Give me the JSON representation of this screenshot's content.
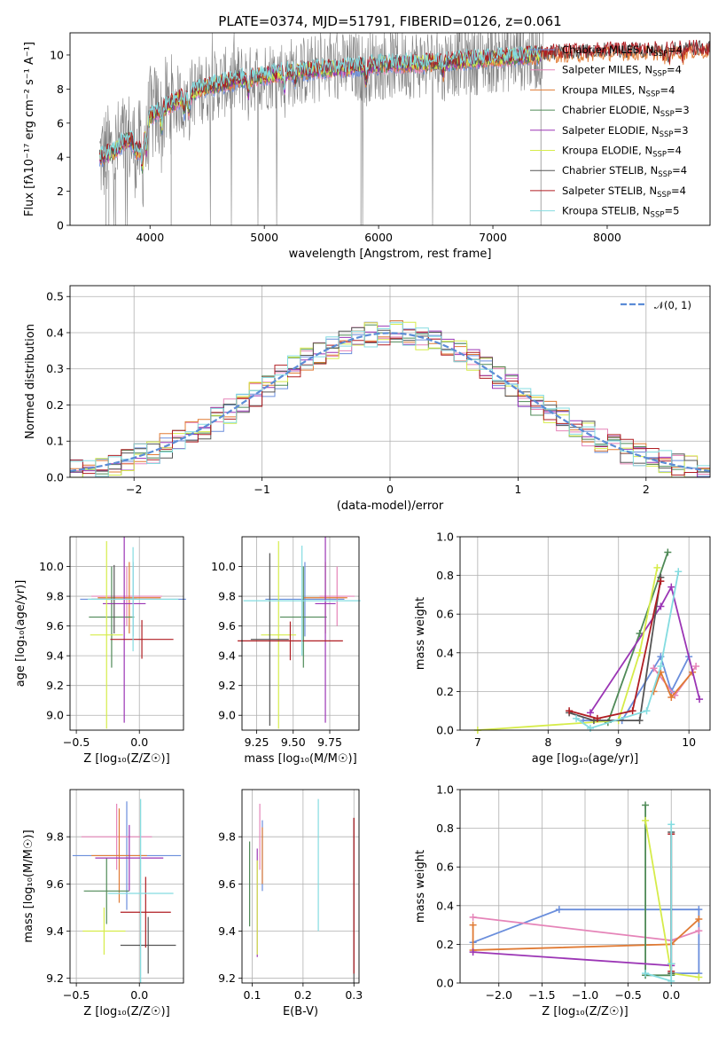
{
  "title": "PLATE=0374, MJD=51791, FIBERID=0126, z=0.061",
  "colors": {
    "Chabrier MILES": "#6a8edc",
    "Salpeter MILES": "#e584b8",
    "Kroupa MILES": "#e07b35",
    "Chabrier ELODIE": "#4f8a57",
    "Salpeter ELODIE": "#9b35b5",
    "Kroupa ELODIE": "#d6ec4a",
    "Chabrier STELIB": "#555555",
    "Salpeter STELIB": "#b01e23",
    "Kroupa STELIB": "#84dce0",
    "data": "#7f7f7f"
  },
  "chart_data": [
    {
      "id": "spectrum",
      "type": "line",
      "title": "PLATE=0374, MJD=51791, FIBERID=0126, z=0.061",
      "xlabel": "wavelength [Angstrom, rest frame]",
      "ylabel": "Flux [fλ10⁻¹⁷ erg cm⁻² s⁻¹ A⁻¹]",
      "xlim": [
        3300,
        8900
      ],
      "ylim": [
        0,
        11.3
      ],
      "xticks": [
        "4000",
        "5000",
        "6000",
        "7000",
        "8000"
      ],
      "yticks": [
        "0",
        "2",
        "4",
        "6",
        "8",
        "10"
      ],
      "legend_position": "right",
      "legend": [
        {
          "label": "Chabrier MILES, N",
          "sub": "SSP",
          "suffix": "=4",
          "color": "#6a8edc"
        },
        {
          "label": "Salpeter MILES, N",
          "sub": "SSP",
          "suffix": "=4",
          "color": "#e584b8"
        },
        {
          "label": "Kroupa MILES, N",
          "sub": "SSP",
          "suffix": "=4",
          "color": "#e07b35"
        },
        {
          "label": "Chabrier ELODIE, N",
          "sub": "SSP",
          "suffix": "=3",
          "color": "#4f8a57"
        },
        {
          "label": "Salpeter ELODIE, N",
          "sub": "SSP",
          "suffix": "=3",
          "color": "#9b35b5"
        },
        {
          "label": "Kroupa ELODIE, N",
          "sub": "SSP",
          "suffix": "=4",
          "color": "#d6ec4a"
        },
        {
          "label": "Chabrier STELIB, N",
          "sub": "SSP",
          "suffix": "=4",
          "color": "#555555"
        },
        {
          "label": "Salpeter STELIB, N",
          "sub": "SSP",
          "suffix": "=4",
          "color": "#b01e23"
        },
        {
          "label": "Kroupa STELIB, N",
          "sub": "SSP",
          "suffix": "=5",
          "color": "#84dce0"
        }
      ],
      "model_trend": {
        "x": [
          3560,
          3700,
          3850,
          4000,
          4200,
          4400,
          4600,
          4800,
          5000,
          5200,
          5400,
          5600,
          5800,
          6000,
          6200,
          6400,
          6600,
          6800,
          7000,
          7200,
          7400,
          7600,
          7800,
          8000,
          8200,
          8400,
          8600,
          8800
        ],
        "y": [
          4.0,
          4.4,
          5.5,
          6.4,
          7.2,
          7.9,
          8.3,
          8.6,
          8.8,
          9.0,
          9.1,
          9.2,
          9.3,
          9.4,
          9.5,
          9.5,
          9.6,
          9.7,
          9.8,
          9.9,
          10.0,
          10.1,
          10.1,
          10.2,
          10.2,
          10.2,
          10.3,
          10.3
        ]
      }
    },
    {
      "id": "residuals",
      "type": "step",
      "xlabel": "(data-model)/error",
      "ylabel": "Normed distribution",
      "xlim": [
        -2.5,
        2.5
      ],
      "ylim": [
        0,
        0.53
      ],
      "xticks": [
        "−2",
        "−1",
        "0",
        "1",
        "2"
      ],
      "yticks": [
        "0.0",
        "0.1",
        "0.2",
        "0.3",
        "0.4",
        "0.5"
      ],
      "gaussian_label": "𝒩(0, 1)",
      "gaussian_color": "#5b8cd6",
      "bin_width": 0.1
    },
    {
      "id": "age-vs-Z",
      "type": "errorbar",
      "xlabel": "Z [log₁₀(Z/Z☉)]",
      "ylabel": "age  [log₁₀(age/yr)]",
      "xlim": [
        -0.55,
        0.35
      ],
      "ylim": [
        8.9,
        10.2
      ],
      "xticks": [
        "−0.5",
        "0.0"
      ],
      "yticks": [
        "9.0",
        "9.2",
        "9.4",
        "9.6",
        "9.8",
        "10.0"
      ],
      "points": [
        {
          "model": "Chabrier MILES",
          "x": -0.05,
          "xerr": 0.42,
          "y": 9.78,
          "yerr": 0.25
        },
        {
          "model": "Salpeter MILES",
          "x": -0.1,
          "xerr": 0.28,
          "y": 9.8,
          "yerr": 0.2
        },
        {
          "model": "Kroupa MILES",
          "x": -0.08,
          "xerr": 0.25,
          "y": 9.79,
          "yerr": 0.24
        },
        {
          "model": "Chabrier ELODIE",
          "x": -0.22,
          "xerr": 0.18,
          "y": 9.66,
          "yerr": 0.34
        },
        {
          "model": "Salpeter ELODIE",
          "x": -0.12,
          "xerr": 0.17,
          "y": 9.75,
          "yerr": 0.8
        },
        {
          "model": "Kroupa ELODIE",
          "x": -0.26,
          "xerr": 0.13,
          "y": 9.54,
          "yerr": 0.63
        },
        {
          "model": "Chabrier STELIB",
          "x": -0.2,
          "xerr": 0.18,
          "y": 9.78,
          "yerr": 0.23
        },
        {
          "model": "Salpeter STELIB",
          "x": 0.02,
          "xerr": 0.25,
          "y": 9.51,
          "yerr": 0.13
        },
        {
          "model": "Kroupa STELIB",
          "x": -0.05,
          "xerr": 0.36,
          "y": 9.78,
          "yerr": 0.35
        }
      ]
    },
    {
      "id": "age-vs-mass",
      "type": "errorbar",
      "xlabel": "mass [log₁₀(M/M☉)]",
      "ylabel": "",
      "xlim": [
        9.15,
        9.95
      ],
      "ylim": [
        8.9,
        10.2
      ],
      "xticks": [
        "9.25",
        "9.50",
        "9.75"
      ],
      "yticks": [
        "9.0",
        "9.2",
        "9.4",
        "9.6",
        "9.8",
        "10.0"
      ],
      "points": [
        {
          "model": "Chabrier MILES",
          "x": 9.58,
          "xerr": 0.27,
          "y": 9.78,
          "yerr": 0.25
        },
        {
          "model": "Salpeter MILES",
          "x": 9.8,
          "xerr": 0.12,
          "y": 9.8,
          "yerr": 0.2
        },
        {
          "model": "Kroupa MILES",
          "x": 9.72,
          "xerr": 0.15,
          "y": 9.79,
          "yerr": 0.24
        },
        {
          "model": "Chabrier ELODIE",
          "x": 9.57,
          "xerr": 0.16,
          "y": 9.66,
          "yerr": 0.34
        },
        {
          "model": "Salpeter ELODIE",
          "x": 9.72,
          "xerr": 0.07,
          "y": 9.75,
          "yerr": 0.8
        },
        {
          "model": "Kroupa ELODIE",
          "x": 9.4,
          "xerr": 0.12,
          "y": 9.54,
          "yerr": 0.63
        },
        {
          "model": "Chabrier STELIB",
          "x": 9.34,
          "xerr": 0.13,
          "y": 9.51,
          "yerr": 0.58
        },
        {
          "model": "Salpeter STELIB",
          "x": 9.48,
          "xerr": 0.36,
          "y": 9.5,
          "yerr": 0.13
        },
        {
          "model": "Kroupa STELIB",
          "x": 9.56,
          "xerr": 0.4,
          "y": 9.77,
          "yerr": 0.37
        }
      ]
    },
    {
      "id": "weight-vs-age",
      "type": "line",
      "xlabel": "age  [log₁₀(age/yr)]",
      "ylabel": "mass weight",
      "xlim": [
        6.75,
        10.3
      ],
      "ylim": [
        0,
        1.0
      ],
      "xticks": [
        "7",
        "8",
        "9",
        "10"
      ],
      "yticks": [
        "0.0",
        "0.2",
        "0.4",
        "0.6",
        "0.8",
        "1.0"
      ],
      "series": [
        {
          "model": "Chabrier MILES",
          "x": [
            8.5,
            9.05,
            9.6,
            9.75,
            10.0
          ],
          "y": [
            0.05,
            0.05,
            0.38,
            0.2,
            0.38
          ]
        },
        {
          "model": "Salpeter MILES",
          "x": [
            9.5,
            9.8,
            10.1
          ],
          "y": [
            0.32,
            0.18,
            0.33
          ]
        },
        {
          "model": "Kroupa MILES",
          "x": [
            9.5,
            9.6,
            9.75,
            10.05
          ],
          "y": [
            0.2,
            0.3,
            0.17,
            0.3
          ]
        },
        {
          "model": "Chabrier ELODIE",
          "x": [
            8.85,
            9.3,
            9.7
          ],
          "y": [
            0.04,
            0.5,
            0.92
          ]
        },
        {
          "model": "Salpeter ELODIE",
          "x": [
            8.6,
            9.6,
            9.75,
            10.15
          ],
          "y": [
            0.09,
            0.64,
            0.74,
            0.16
          ]
        },
        {
          "model": "Kroupa ELODIE",
          "x": [
            7.0,
            9.0,
            9.3,
            9.55
          ],
          "y": [
            0.0,
            0.05,
            0.4,
            0.84
          ]
        },
        {
          "model": "Chabrier STELIB",
          "x": [
            8.3,
            8.65,
            9.3,
            9.6
          ],
          "y": [
            0.09,
            0.05,
            0.05,
            0.79
          ]
        },
        {
          "model": "Salpeter STELIB",
          "x": [
            8.3,
            8.7,
            9.2,
            9.6
          ],
          "y": [
            0.1,
            0.06,
            0.1,
            0.77
          ]
        },
        {
          "model": "Kroupa STELIB",
          "x": [
            8.4,
            8.6,
            9.4,
            9.6,
            9.85
          ],
          "y": [
            0.06,
            0.01,
            0.1,
            0.33,
            0.82
          ]
        }
      ]
    },
    {
      "id": "mass-vs-Z",
      "type": "errorbar",
      "xlabel": "Z [log₁₀(Z/Z☉)]",
      "ylabel": "mass [log₁₀(M/M☉)]",
      "xlim": [
        -0.55,
        0.35
      ],
      "ylim": [
        9.18,
        10.0
      ],
      "xticks": [
        "−0.5",
        "0.0"
      ],
      "yticks": [
        "9.2",
        "9.4",
        "9.6",
        "9.8"
      ],
      "points": [
        {
          "model": "Chabrier MILES",
          "x": -0.1,
          "xerr": 0.43,
          "y": 9.72,
          "yerr": 0.23
        },
        {
          "model": "Salpeter MILES",
          "x": -0.18,
          "xerr": 0.28,
          "y": 9.8,
          "yerr": 0.14
        },
        {
          "model": "Kroupa MILES",
          "x": -0.16,
          "xerr": 0.22,
          "y": 9.72,
          "yerr": 0.2
        },
        {
          "model": "Chabrier ELODIE",
          "x": -0.26,
          "xerr": 0.18,
          "y": 9.57,
          "yerr": 0.14
        },
        {
          "model": "Salpeter ELODIE",
          "x": -0.08,
          "xerr": 0.27,
          "y": 9.71,
          "yerr": 0.14
        },
        {
          "model": "Kroupa ELODIE",
          "x": -0.28,
          "xerr": 0.17,
          "y": 9.4,
          "yerr": 0.1
        },
        {
          "model": "Chabrier STELIB",
          "x": 0.07,
          "xerr": 0.22,
          "y": 9.34,
          "yerr": 0.12
        },
        {
          "model": "Salpeter STELIB",
          "x": 0.05,
          "xerr": 0.2,
          "y": 9.48,
          "yerr": 0.15
        },
        {
          "model": "Kroupa STELIB",
          "x": 0.01,
          "xerr": 0.26,
          "y": 9.56,
          "yerr": 0.4
        }
      ]
    },
    {
      "id": "mass-vs-ebv",
      "type": "errorbar",
      "xlabel": "E(B-V)",
      "ylabel": "",
      "xlim": [
        0.08,
        0.31
      ],
      "ylim": [
        9.18,
        10.0
      ],
      "xticks": [
        "0.1",
        "0.2",
        "0.3"
      ],
      "yticks": [
        "9.2",
        "9.4",
        "9.6",
        "9.8"
      ],
      "points": [
        {
          "model": "Chabrier MILES",
          "x": 0.12,
          "xerr": 0.0,
          "y": 9.72,
          "yerr": 0.15
        },
        {
          "model": "Salpeter MILES",
          "x": 0.115,
          "xerr": 0.0,
          "y": 9.8,
          "yerr": 0.14
        },
        {
          "model": "Kroupa MILES",
          "x": 0.12,
          "xerr": 0.0,
          "y": 9.72,
          "yerr": 0.12
        },
        {
          "model": "Chabrier ELODIE",
          "x": 0.095,
          "xerr": 0.0,
          "y": 9.6,
          "yerr": 0.18
        },
        {
          "model": "Salpeter ELODIE",
          "x": 0.11,
          "xerr": 0.0,
          "y": 9.52,
          "yerr": 0.23
        },
        {
          "model": "Kroupa ELODIE",
          "x": 0.11,
          "xerr": 0.0,
          "y": 9.5,
          "yerr": 0.2
        },
        {
          "model": "Chabrier STELIB",
          "x": 0.3,
          "xerr": 0.0,
          "y": 9.52,
          "yerr": 0.36
        },
        {
          "model": "Salpeter STELIB",
          "x": 0.3,
          "xerr": 0.0,
          "y": 9.55,
          "yerr": 0.33
        },
        {
          "model": "Kroupa STELIB",
          "x": 0.23,
          "xerr": 0.0,
          "y": 9.68,
          "yerr": 0.28
        }
      ]
    },
    {
      "id": "weight-vs-Z",
      "type": "line",
      "xlabel": "Z [log₁₀(Z/Z☉)]",
      "ylabel": "mass weight",
      "xlim": [
        -2.45,
        0.45
      ],
      "ylim": [
        0,
        1.0
      ],
      "xticks": [
        "−2.0",
        "−1.5",
        "−1.0",
        "−0.5",
        "0.0"
      ],
      "yticks": [
        "0.0",
        "0.2",
        "0.4",
        "0.6",
        "0.8",
        "1.0"
      ],
      "series": [
        {
          "model": "Chabrier MILES",
          "x": [
            -2.3,
            -1.3,
            0.32,
            0.32,
            0.0
          ],
          "y": [
            0.21,
            0.38,
            0.38,
            0.05,
            0.05
          ]
        },
        {
          "model": "Salpeter MILES",
          "x": [
            -2.3,
            0.0,
            0.32
          ],
          "y": [
            0.34,
            0.22,
            0.27
          ]
        },
        {
          "model": "Kroupa MILES",
          "x": [
            -2.3,
            -2.3,
            0.0,
            0.32
          ],
          "y": [
            0.3,
            0.17,
            0.2,
            0.33
          ]
        },
        {
          "model": "Chabrier ELODIE",
          "x": [
            -0.3,
            -0.3,
            0.0
          ],
          "y": [
            0.92,
            0.04,
            0.04
          ]
        },
        {
          "model": "Salpeter ELODIE",
          "x": [
            -2.3,
            0.0
          ],
          "y": [
            0.16,
            0.09
          ]
        },
        {
          "model": "Kroupa ELODIE",
          "x": [
            -0.3,
            0.0,
            0.32
          ],
          "y": [
            0.84,
            0.05,
            0.03
          ]
        },
        {
          "model": "Chabrier STELIB",
          "x": [
            0.0,
            0.0,
            0.0
          ],
          "y": [
            0.78,
            0.1,
            0.05
          ]
        },
        {
          "model": "Salpeter STELIB",
          "x": [
            0.0,
            0.0,
            0.0
          ],
          "y": [
            0.77,
            0.1,
            0.06
          ]
        },
        {
          "model": "Kroupa STELIB",
          "x": [
            -0.3,
            0.0,
            0.0,
            0.0
          ],
          "y": [
            0.05,
            0.01,
            0.1,
            0.82
          ]
        }
      ]
    }
  ]
}
